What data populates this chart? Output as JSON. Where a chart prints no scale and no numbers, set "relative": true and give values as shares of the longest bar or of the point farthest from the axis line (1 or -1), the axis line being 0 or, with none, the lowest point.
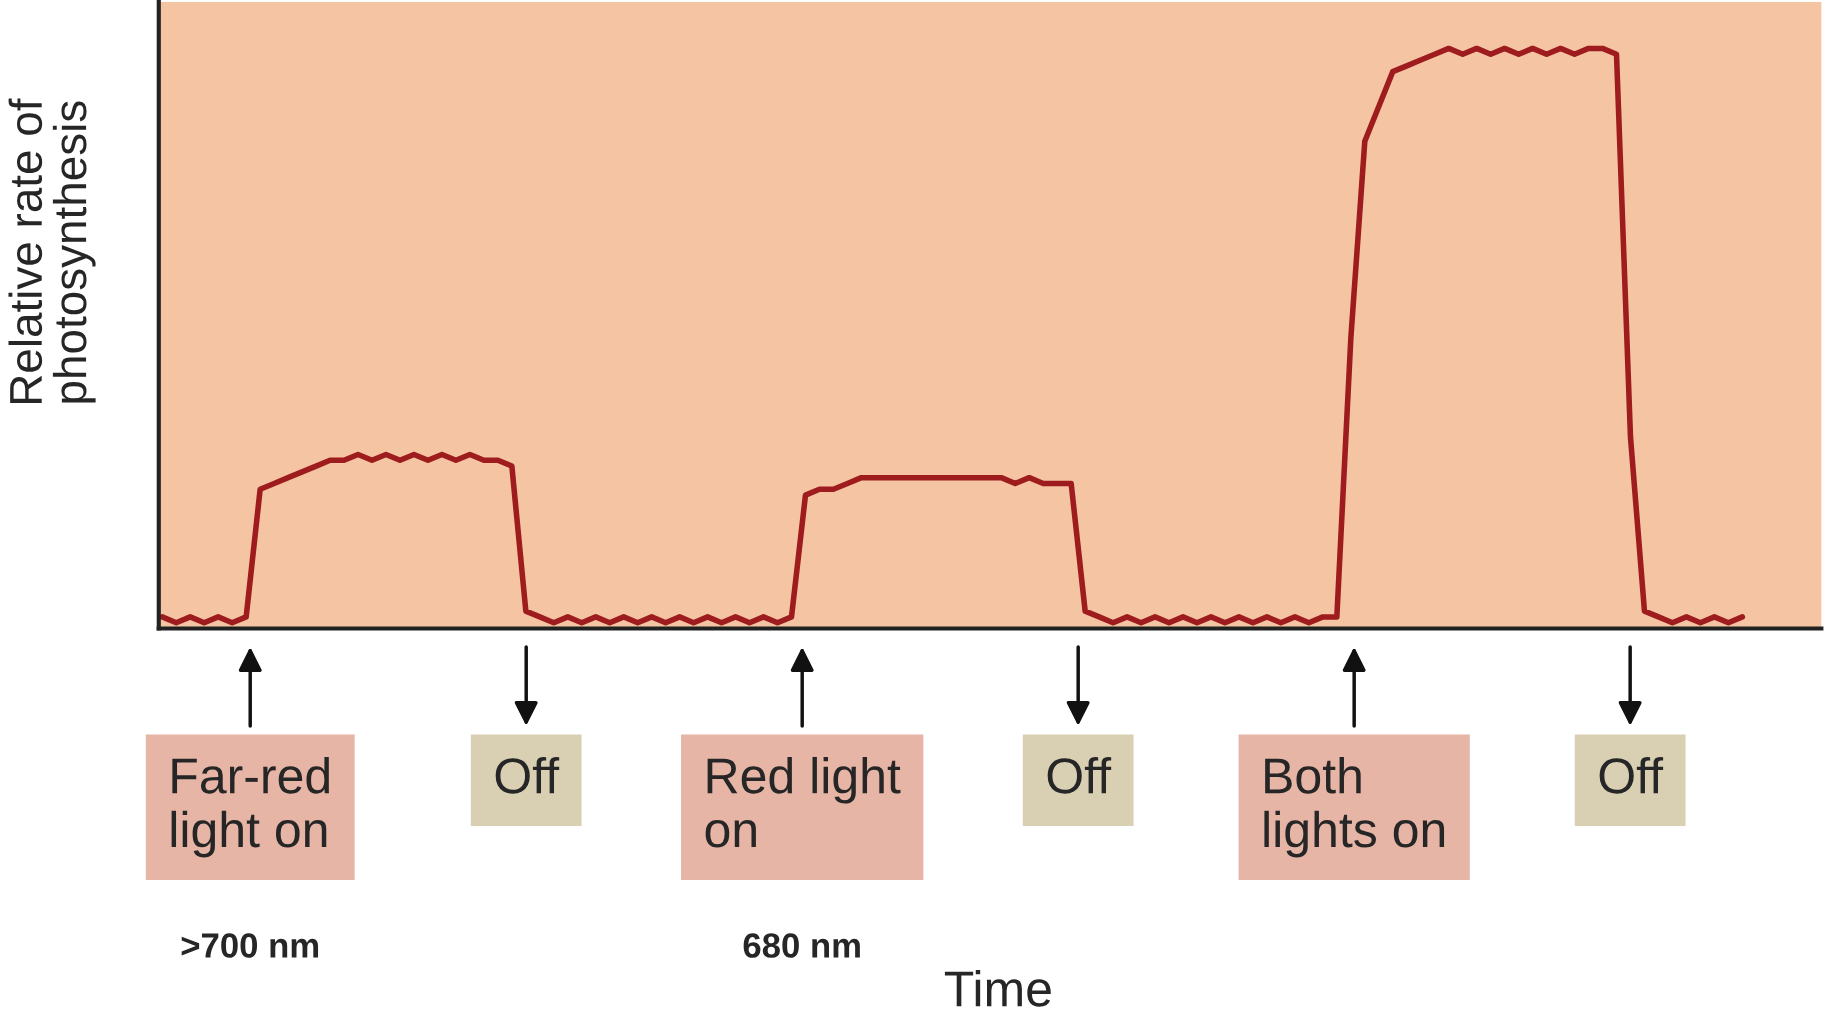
{
  "chart_data": {
    "type": "line",
    "relative": true,
    "grid": false,
    "legend": false,
    "ylabel": "Relative rate of\nphotosynthesis",
    "categories": [
      null,
      null,
      null,
      null,
      null,
      null,
      null,
      null,
      null,
      null,
      null,
      null,
      null,
      null,
      null,
      null,
      null,
      null,
      null,
      null,
      null,
      null,
      null,
      null,
      null,
      null,
      null,
      null,
      null,
      null,
      null,
      null,
      null,
      null,
      null,
      null,
      null,
      null,
      null,
      null,
      null,
      null,
      null,
      null,
      null,
      null,
      null,
      null,
      null,
      null,
      null,
      null,
      null,
      null,
      null,
      null,
      null,
      null,
      null,
      null,
      null,
      null,
      null,
      null,
      null,
      null,
      null,
      null,
      null,
      null,
      null,
      null,
      null,
      null,
      null,
      null,
      null,
      null,
      null,
      null,
      null,
      null,
      null,
      null,
      null,
      null,
      null,
      null,
      null,
      null,
      null,
      null,
      null,
      null,
      null,
      null,
      null,
      null,
      null,
      null,
      null,
      null,
      null,
      null,
      null,
      null,
      null,
      null,
      null,
      null,
      null,
      null,
      null,
      null
    ],
    "series": [
      {
        "color": "#9e1b1e",
        "values": [
          0.02,
          0.01,
          0.02,
          0.01,
          0.02,
          0.01,
          0.02,
          0.24,
          0.25,
          0.26,
          0.27,
          0.28,
          0.29,
          0.29,
          0.3,
          0.29,
          0.3,
          0.29,
          0.3,
          0.29,
          0.3,
          0.29,
          0.3,
          0.29,
          0.29,
          0.28,
          0.03,
          0.02,
          0.01,
          0.02,
          0.01,
          0.02,
          0.01,
          0.02,
          0.01,
          0.02,
          0.01,
          0.02,
          0.01,
          0.02,
          0.01,
          0.02,
          0.01,
          0.02,
          0.01,
          0.02,
          0.23,
          0.24,
          0.24,
          0.25,
          0.26,
          0.26,
          0.26,
          0.26,
          0.26,
          0.26,
          0.26,
          0.26,
          0.26,
          0.26,
          0.26,
          0.25,
          0.26,
          0.25,
          0.25,
          0.25,
          0.03,
          0.02,
          0.01,
          0.02,
          0.01,
          0.02,
          0.01,
          0.02,
          0.01,
          0.02,
          0.01,
          0.02,
          0.01,
          0.02,
          0.01,
          0.02,
          0.01,
          0.02,
          0.02,
          0.5,
          0.84,
          0.9,
          0.96,
          0.97,
          0.98,
          0.99,
          1.0,
          0.99,
          1.0,
          0.99,
          1.0,
          0.99,
          1.0,
          0.99,
          1.0,
          0.99,
          1.0,
          1.0,
          0.99,
          0.33,
          0.03,
          0.02,
          0.01,
          0.02,
          0.01,
          0.02,
          0.01,
          0.02
        ]
      }
    ],
    "annotations": [
      "Far-red\nlight on",
      "Off",
      "Red light\non",
      "Off",
      "Both\nlights on",
      "Off",
      ">700 nm",
      "680 nm",
      "Time"
    ]
  }
}
